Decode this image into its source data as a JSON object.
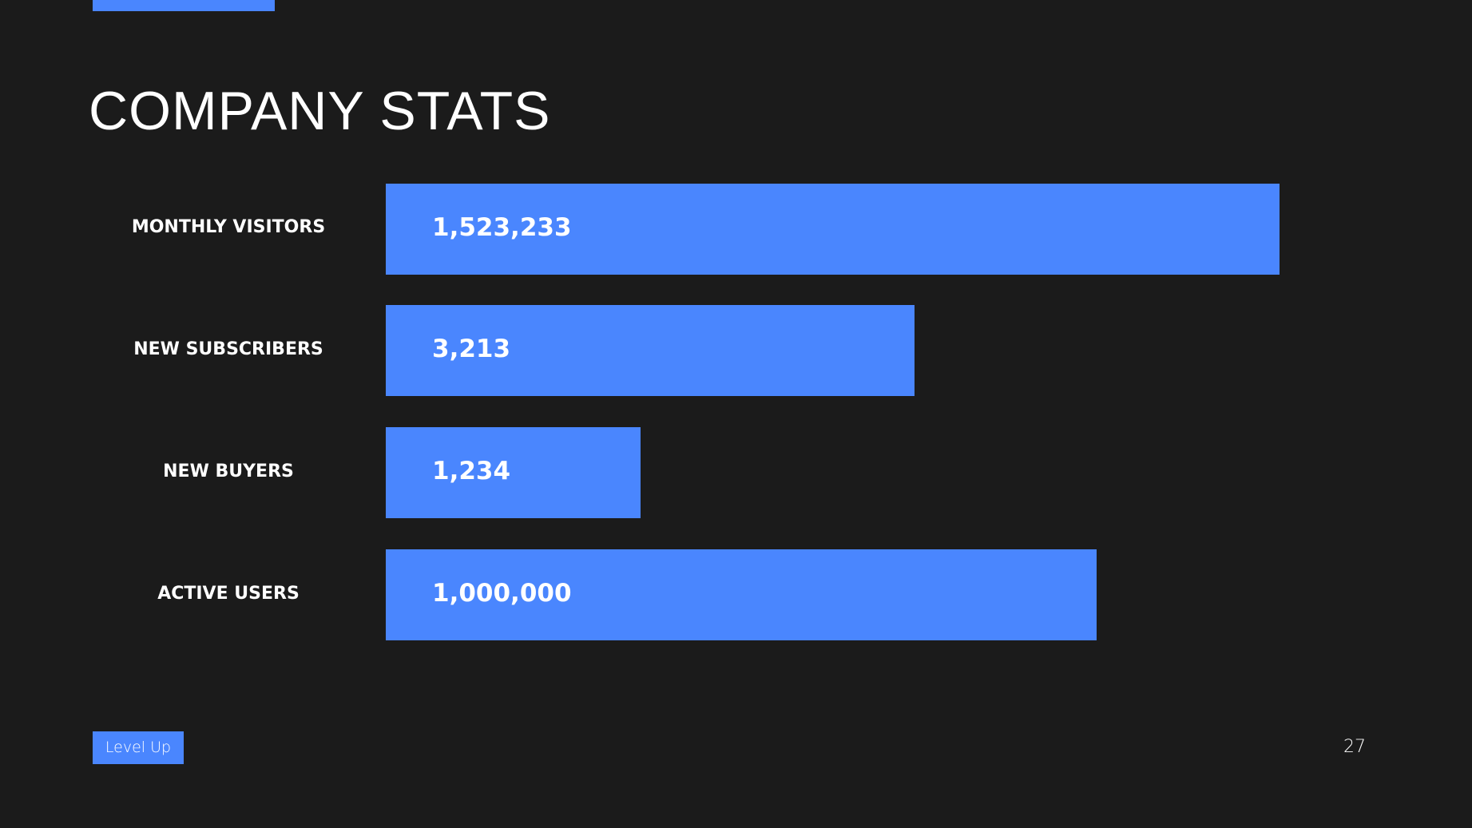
{
  "title": "COMPANY STATS",
  "stats": [
    {
      "label": "MONTHLY VISITORS",
      "value": "1,523,233"
    },
    {
      "label": "NEW SUBSCRIBERS",
      "value": "3,213"
    },
    {
      "label": "NEW BUYERS",
      "value": "1,234"
    },
    {
      "label": "ACTIVE USERS",
      "value": "1,000,000"
    }
  ],
  "footer": {
    "tag": "Level Up",
    "page_number": "27"
  }
}
